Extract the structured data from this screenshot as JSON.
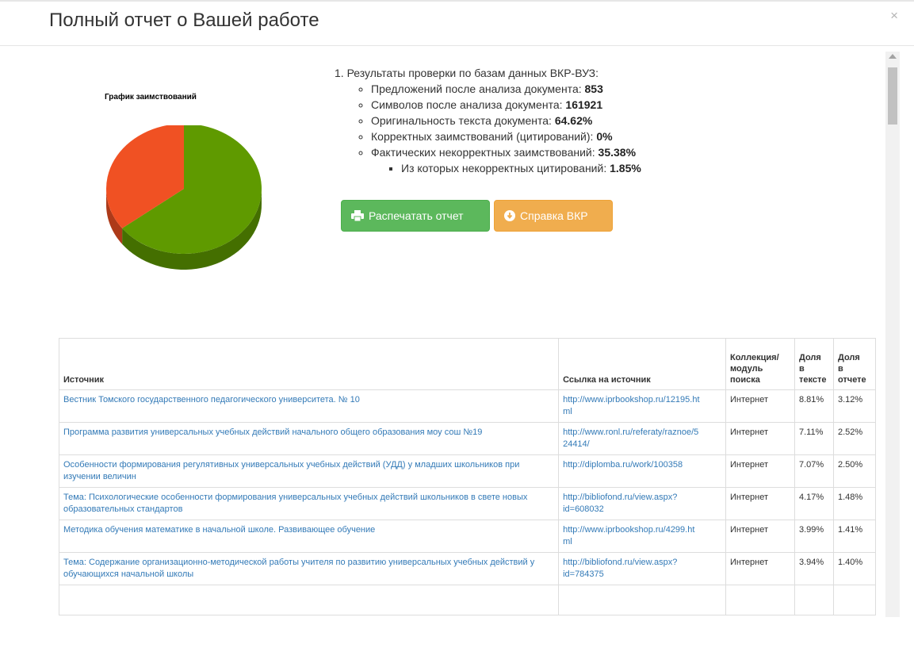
{
  "modal": {
    "title": "Полный отчет о Вашей работе",
    "close_label": "×"
  },
  "chart_data": {
    "type": "pie",
    "title": "График заимствований",
    "values": [
      64.62,
      35.38
    ],
    "colors": [
      "#5f9a00",
      "#f05123"
    ]
  },
  "results": {
    "heading": "1. Результаты проверки по базам данных ВКР-ВУЗ:",
    "items": [
      {
        "label": "Предложений после анализа документа:",
        "value": "853"
      },
      {
        "label": "Символов после анализа документа:",
        "value": "161921"
      },
      {
        "label": "Оригинальность текста документа:",
        "value": "64.62%"
      },
      {
        "label": "Корректных заимствований (цитирований):",
        "value": "0%"
      },
      {
        "label": "Фактических некорректных заимствований:",
        "value": "35.38%"
      }
    ],
    "sub_item": {
      "label": "Из которых некорректных цитирований:",
      "value": "1.85%"
    }
  },
  "buttons": {
    "print_label": "Распечатать отчет",
    "help_label": "Справка ВКР",
    "print_color": "#5cb85c",
    "help_color": "#f0ad4e"
  },
  "table": {
    "headers": {
      "source": "Источник",
      "link": "Ссылка на источник",
      "collection": [
        "Коллекция/",
        "модуль",
        "поиска"
      ],
      "share_text": [
        "Доля",
        "в",
        "тексте"
      ],
      "share_report": [
        "Доля",
        "в",
        "отчете"
      ]
    },
    "rows": [
      {
        "source": "Вестник Томского государственного педагогического университета. № 10",
        "link": [
          "http://www.iprbookshop.ru/12195.ht",
          "ml"
        ],
        "collection": "Интернет",
        "share_text": "8.81%",
        "share_report": "3.12%"
      },
      {
        "source": "Программа развития универсальных учебных действий начального общего образования моу сош №19",
        "link": [
          "http://www.ronl.ru/referaty/raznoe/5",
          "24414/"
        ],
        "collection": "Интернет",
        "share_text": "7.11%",
        "share_report": "2.52%"
      },
      {
        "source": "Особенности формирования регулятивных универсальных учебных действий (УДД) у младших школьников при изучении величин",
        "link": [
          "http://diplomba.ru/work/100358",
          ""
        ],
        "collection": "Интернет",
        "share_text": "7.07%",
        "share_report": "2.50%"
      },
      {
        "source": "Тема: Психологические особенности формирования универсальных учебных действий школьников в свете новых образовательных стандартов",
        "link": [
          "http://bibliofond.ru/view.aspx?",
          "id=608032"
        ],
        "collection": "Интернет",
        "share_text": "4.17%",
        "share_report": "1.48%"
      },
      {
        "source": "Методика обучения математике в начальной школе. Развивающее обучение",
        "link": [
          "http://www.iprbookshop.ru/4299.ht",
          "ml"
        ],
        "collection": "Интернет",
        "share_text": "3.99%",
        "share_report": "1.41%"
      },
      {
        "source": "Тема: Содержание организационно-методической работы учителя по развитию универсальных учебных действий у обучающихся начальной школы",
        "link": [
          "http://bibliofond.ru/view.aspx?",
          "id=784375"
        ],
        "collection": "Интернет",
        "share_text": "3.94%",
        "share_report": "1.40%"
      }
    ]
  }
}
